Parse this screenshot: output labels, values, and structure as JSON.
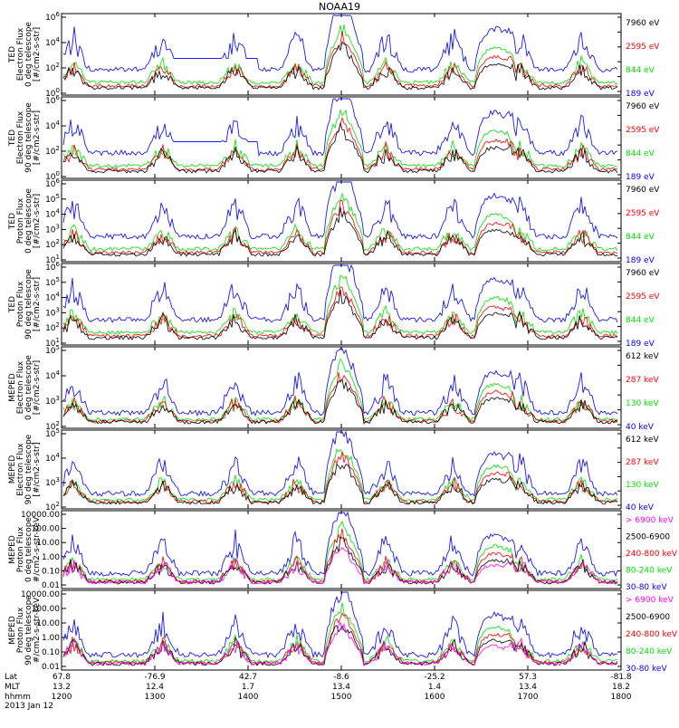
{
  "title": "NOAA19",
  "footer": {
    "row_labels": [
      "Lat",
      "MLT",
      "hhmm",
      "2013 Jan 12"
    ],
    "columns": [
      {
        "lat": "67.8",
        "mlt": "13.2",
        "hhmm": "1200"
      },
      {
        "lat": "-76.9",
        "mlt": "12.4",
        "hhmm": "1300"
      },
      {
        "lat": "42.7",
        "mlt": "1.7",
        "hhmm": "1400"
      },
      {
        "lat": "-8.6",
        "mlt": "13.4",
        "hhmm": "1500"
      },
      {
        "lat": "-25.2",
        "mlt": "1.4",
        "hhmm": "1600"
      },
      {
        "lat": "57.3",
        "mlt": "13.4",
        "hhmm": "1700"
      },
      {
        "lat": "-81.8",
        "mlt": "18.2",
        "hhmm": "1800"
      }
    ]
  },
  "colors": {
    "black": "#000000",
    "red": "#ff0000",
    "green": "#00e000",
    "blue": "#0000ff",
    "magenta": "#ff00ff"
  },
  "chart_data": [
    {
      "type": "line",
      "ylabel": [
        "TED",
        "Electron Flux",
        "0 deg telescope",
        "[#/cm2-s-str]"
      ],
      "yscale": "log",
      "ylim": [
        1,
        1000000
      ],
      "yticks": [
        {
          "label": "10",
          "sup": "0"
        },
        {
          "label": "10",
          "sup": "2"
        },
        {
          "label": "10",
          "sup": "4"
        },
        {
          "label": "10",
          "sup": "6"
        }
      ],
      "legend": [
        {
          "text": "7960 eV",
          "color": "#000000"
        },
        {
          "text": "2595 eV",
          "color": "#ff0000"
        },
        {
          "text": "844 eV",
          "color": "#00e000"
        },
        {
          "text": "189 eV",
          "color": "#0000ff"
        }
      ]
    },
    {
      "type": "line",
      "ylabel": [
        "TED",
        "Electron Flux",
        "90 deg telescope",
        "[#/cm2-s-str]"
      ],
      "yscale": "log",
      "ylim": [
        1,
        1000000
      ],
      "yticks": [
        {
          "label": "10",
          "sup": "0"
        },
        {
          "label": "10",
          "sup": "2"
        },
        {
          "label": "10",
          "sup": "4"
        },
        {
          "label": "10",
          "sup": "6"
        }
      ],
      "legend": [
        {
          "text": "7960 eV",
          "color": "#000000"
        },
        {
          "text": "2595 eV",
          "color": "#ff0000"
        },
        {
          "text": "844 eV",
          "color": "#00e000"
        },
        {
          "text": "189 eV",
          "color": "#0000ff"
        }
      ]
    },
    {
      "type": "line",
      "ylabel": [
        "TED",
        "Proton Flux",
        "0 deg telescope",
        "[#/cm2-s-str]"
      ],
      "yscale": "log",
      "ylim": [
        1,
        1000000
      ],
      "yticks": [
        {
          "label": "10",
          "sup": "1"
        },
        {
          "label": "10",
          "sup": "2"
        },
        {
          "label": "10",
          "sup": "3"
        },
        {
          "label": "10",
          "sup": "4"
        },
        {
          "label": "10",
          "sup": "5"
        },
        {
          "label": "10",
          "sup": "6"
        }
      ],
      "legend": [
        {
          "text": "7960 eV",
          "color": "#000000"
        },
        {
          "text": "2595 eV",
          "color": "#ff0000"
        },
        {
          "text": "844 eV",
          "color": "#00e000"
        },
        {
          "text": "189 eV",
          "color": "#0000ff"
        }
      ]
    },
    {
      "type": "line",
      "ylabel": [
        "TED",
        "Proton Flux",
        "90 deg telescope",
        "[#/cm2-s-str]"
      ],
      "yscale": "log",
      "ylim": [
        1,
        1000000
      ],
      "yticks": [
        {
          "label": "10",
          "sup": "1"
        },
        {
          "label": "10",
          "sup": "2"
        },
        {
          "label": "10",
          "sup": "3"
        },
        {
          "label": "10",
          "sup": "4"
        },
        {
          "label": "10",
          "sup": "5"
        },
        {
          "label": "10",
          "sup": "6"
        }
      ],
      "legend": [
        {
          "text": "7960 eV",
          "color": "#000000"
        },
        {
          "text": "2595 eV",
          "color": "#ff0000"
        },
        {
          "text": "844 eV",
          "color": "#00e000"
        },
        {
          "text": "189 eV",
          "color": "#0000ff"
        }
      ]
    },
    {
      "type": "line",
      "ylabel": [
        "MEPED",
        "Electron Flux",
        "0 deg telescope",
        "[#/cm2-s-str]"
      ],
      "yscale": "log",
      "ylim": [
        1,
        1000000
      ],
      "yticks": [
        {
          "label": "10",
          "sup": "2"
        },
        {
          "label": "10",
          "sup": "3"
        },
        {
          "label": "10",
          "sup": "4"
        },
        {
          "label": "10",
          "sup": "5"
        }
      ],
      "legend": [
        {
          "text": "612 keV",
          "color": "#000000"
        },
        {
          "text": "287 keV",
          "color": "#ff0000"
        },
        {
          "text": "130 keV",
          "color": "#00e000"
        },
        {
          "text": "40 keV",
          "color": "#0000ff"
        }
      ]
    },
    {
      "type": "line",
      "ylabel": [
        "MEPED",
        "Electron Flux",
        "90 deg telescope",
        "[#/cm2-s-str]"
      ],
      "yscale": "log",
      "ylim": [
        1,
        1000000
      ],
      "yticks": [
        {
          "label": "10",
          "sup": "2"
        },
        {
          "label": "10",
          "sup": "3"
        },
        {
          "label": "10",
          "sup": "4"
        },
        {
          "label": "10",
          "sup": "5"
        }
      ],
      "legend": [
        {
          "text": "612 keV",
          "color": "#000000"
        },
        {
          "text": "287 keV",
          "color": "#ff0000"
        },
        {
          "text": "130 keV",
          "color": "#00e000"
        },
        {
          "text": "40 keV",
          "color": "#0000ff"
        }
      ]
    },
    {
      "type": "line",
      "ylabel": [
        "MEPED",
        "Proton Flux",
        "0 deg telescope",
        "#/cm2-s-str-keV"
      ],
      "yscale": "log",
      "ylim": [
        0.01,
        10000
      ],
      "yticks": [
        {
          "label": "10000.00"
        },
        {
          "label": "100.00"
        },
        {
          "label": "10.00"
        },
        {
          "label": "1.00"
        },
        {
          "label": "0.10"
        },
        {
          "label": "0.01"
        }
      ],
      "legend": [
        {
          "text": "> 6900 keV",
          "color": "#ff00ff"
        },
        {
          "text": "2500-6900",
          "color": "#000000"
        },
        {
          "text": "240-800 keV",
          "color": "#ff0000"
        },
        {
          "text": "80-240 keV",
          "color": "#00e000"
        },
        {
          "text": "30-80 keV",
          "color": "#0000ff"
        }
      ]
    },
    {
      "type": "line",
      "ylabel": [
        "MEPED",
        "Proton Flux",
        "90 deg telescope",
        "#/cm2-s-str-keV"
      ],
      "yscale": "log",
      "ylim": [
        0.01,
        10000
      ],
      "yticks": [
        {
          "label": "10000.00"
        },
        {
          "label": "100.00"
        },
        {
          "label": "10.00"
        },
        {
          "label": "1.00"
        },
        {
          "label": "0.10"
        },
        {
          "label": "0.01"
        }
      ],
      "legend": [
        {
          "text": "> 6900 keV",
          "color": "#ff00ff"
        },
        {
          "text": "2500-6900",
          "color": "#000000"
        },
        {
          "text": "240-800 keV",
          "color": "#ff0000"
        },
        {
          "text": "80-240 keV",
          "color": "#00e000"
        },
        {
          "text": "30-80 keV",
          "color": "#0000ff"
        }
      ]
    }
  ]
}
